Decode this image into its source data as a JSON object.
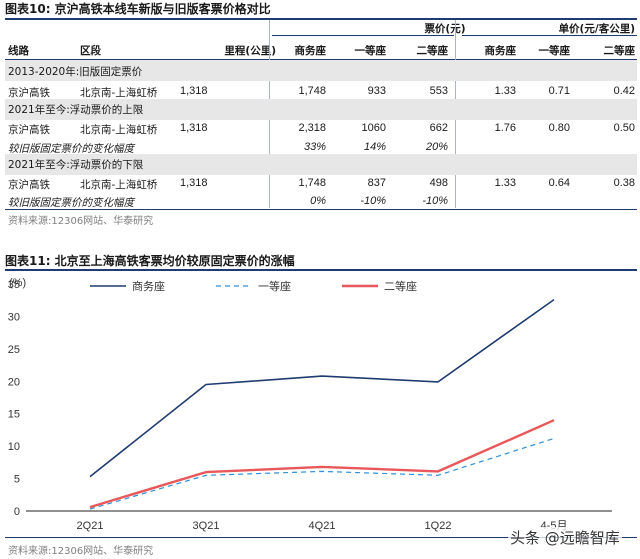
{
  "table10": {
    "title": "图表10:  京沪高铁本线车新版与旧版客票价格对比",
    "group_fare": "票价(元)",
    "group_unit": "单价(元/客公里)",
    "headers": [
      "线路",
      "区段",
      "里程(公里)",
      "商务座",
      "一等座",
      "二等座",
      "商务座",
      "一等座",
      "二等座"
    ],
    "sections": [
      {
        "label": "2013-2020年:旧版固定票价",
        "rows": [
          {
            "route": "京沪高铁",
            "segment": "北京南-上海虹桥",
            "distance": "1,318",
            "fares": [
              "1,748",
              "933",
              "553"
            ],
            "units": [
              "1.33",
              "0.71",
              "0.42"
            ]
          }
        ]
      },
      {
        "label": "2021年至今:浮动票价的上限",
        "rows": [
          {
            "route": "京沪高铁",
            "segment": "北京南-上海虹桥",
            "distance": "1,318",
            "fares": [
              "2,318",
              "1060",
              "662"
            ],
            "units": [
              "1.76",
              "0.80",
              "0.50"
            ]
          },
          {
            "route": "较旧版固定票价的变化幅度",
            "fares": [
              "33%",
              "14%",
              "20%"
            ]
          }
        ]
      },
      {
        "label": "2021年至今:浮动票价的下限",
        "rows": [
          {
            "route": "京沪高铁",
            "segment": "北京南-上海虹桥",
            "distance": "1,318",
            "fares": [
              "1,748",
              "837",
              "498"
            ],
            "units": [
              "1.33",
              "0.64",
              "0.38"
            ]
          },
          {
            "route": "较旧版固定票价的变化幅度",
            "fares": [
              "0%",
              "-10%",
              "-10%"
            ]
          }
        ]
      }
    ],
    "source": "资料来源:12306网站、华泰研究"
  },
  "figure11": {
    "title": "图表11:  北京至上海高铁客票均价较原固定票价的涨幅",
    "source": "资料来源:12306网站、华泰研究"
  },
  "chart_data": {
    "type": "line",
    "title": "",
    "xlabel": "",
    "ylabel": "(%)",
    "categories": [
      "2Q21",
      "3Q21",
      "4Q21",
      "1Q22",
      "4-5月"
    ],
    "ylim": [
      0,
      35
    ],
    "yticks": [
      0,
      5,
      10,
      15,
      20,
      25,
      30,
      35
    ],
    "legend_position": "top",
    "grid": false,
    "series": [
      {
        "name": "商务座",
        "color": "#1f3b6f",
        "style": "solid",
        "values": [
          5.3,
          19.5,
          20.8,
          19.9,
          32.6
        ]
      },
      {
        "name": "一等座",
        "color": "#2f8fd8",
        "style": "dashed",
        "values": [
          0.3,
          5.5,
          6.1,
          5.5,
          11.2
        ]
      },
      {
        "name": "二等座",
        "color": "#e8575a",
        "style": "solid",
        "values": [
          0.6,
          6.0,
          6.8,
          6.1,
          14.0
        ]
      }
    ]
  },
  "watermark": "头条 @远瞻智库"
}
